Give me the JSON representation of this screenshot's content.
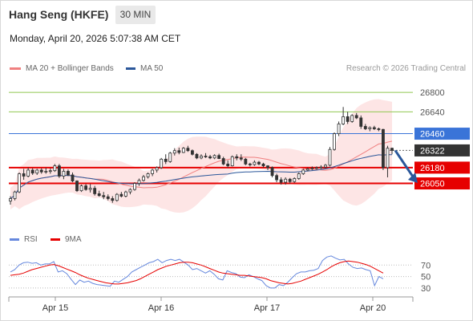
{
  "header": {
    "title": "Hang Seng (HKFE)",
    "interval": "30 MIN"
  },
  "datetime": "Monday, April 20, 2026 5:07:38 AM CET",
  "legend": {
    "ma20_label": "MA 20 + Bollinger Bands",
    "ma50_label": "MA 50",
    "rsi_label": "RSI",
    "rsi_ma_label": "9MA"
  },
  "research": "Research © 2026 Trading Central",
  "colors": {
    "ma20": "#f08080",
    "ma50": "#2b579a",
    "bands_fill": "#fde1e1",
    "support": "#e60000",
    "resistance_blue": "#3a74d8",
    "resistance_green": "#90c850",
    "last_price_bg": "#333333",
    "arrow": "#2b579a",
    "rsi": "#6688dd",
    "rsi_ma": "#e60000"
  },
  "chart_data": [
    {
      "type": "candlestick",
      "x_labels": [
        "Apr 15",
        "Apr 16",
        "Apr 17",
        "Apr 20"
      ],
      "levels": [
        {
          "value": 26800,
          "kind": "resistance",
          "color": "green"
        },
        {
          "value": 26640,
          "kind": "resistance",
          "color": "green"
        },
        {
          "value": 26460,
          "kind": "pivot",
          "color": "blue"
        },
        {
          "value": 26322,
          "kind": "last_price",
          "color": "dark"
        },
        {
          "value": 26180,
          "kind": "support",
          "color": "red"
        },
        {
          "value": 26050,
          "kind": "support",
          "color": "red"
        }
      ],
      "ylim": [
        25690,
        26920
      ],
      "ohlc": [
        [
          25905,
          25945,
          25875,
          25925
        ],
        [
          25925,
          25990,
          25910,
          25980
        ],
        [
          25980,
          26140,
          25970,
          26130
        ],
        [
          26130,
          26170,
          26080,
          26110
        ],
        [
          26110,
          26180,
          26100,
          26160
        ],
        [
          26160,
          26175,
          26120,
          26135
        ],
        [
          26135,
          26170,
          26120,
          26160
        ],
        [
          26160,
          26175,
          26130,
          26145
        ],
        [
          26145,
          26180,
          26130,
          26150
        ],
        [
          26150,
          26175,
          26130,
          26155
        ],
        [
          26155,
          26210,
          26145,
          26195
        ],
        [
          26195,
          26210,
          26095,
          26110
        ],
        [
          26110,
          26170,
          26085,
          26150
        ],
        [
          26150,
          26165,
          26110,
          26120
        ],
        [
          26120,
          26140,
          26060,
          26070
        ],
        [
          26070,
          26075,
          25980,
          25990
        ],
        [
          25990,
          26040,
          25980,
          26030
        ],
        [
          26030,
          26045,
          25990,
          26000
        ],
        [
          26000,
          26045,
          25975,
          26010
        ],
        [
          26010,
          26030,
          25950,
          25965
        ],
        [
          25965,
          25990,
          25940,
          25950
        ],
        [
          25950,
          25980,
          25920,
          25940
        ],
        [
          25940,
          25960,
          25910,
          25925
        ],
        [
          25925,
          25945,
          25890,
          25910
        ],
        [
          25910,
          25970,
          25900,
          25960
        ],
        [
          25960,
          25980,
          25935,
          25945
        ],
        [
          25945,
          25990,
          25935,
          25980
        ],
        [
          25980,
          26010,
          25960,
          26000
        ],
        [
          26000,
          26060,
          25990,
          26050
        ],
        [
          26050,
          26090,
          26030,
          26075
        ],
        [
          26075,
          26120,
          26065,
          26105
        ],
        [
          26105,
          26140,
          26090,
          26130
        ],
        [
          26130,
          26170,
          26110,
          26160
        ],
        [
          26160,
          26190,
          26140,
          26180
        ],
        [
          26180,
          26260,
          26170,
          26250
        ],
        [
          26250,
          26290,
          26210,
          26230
        ],
        [
          26230,
          26310,
          26220,
          26300
        ],
        [
          26300,
          26340,
          26280,
          26320
        ],
        [
          26320,
          26345,
          26290,
          26305
        ],
        [
          26305,
          26350,
          26300,
          26340
        ],
        [
          26340,
          26360,
          26310,
          26320
        ],
        [
          26320,
          26330,
          26280,
          26290
        ],
        [
          26290,
          26300,
          26250,
          26260
        ],
        [
          26260,
          26290,
          26250,
          26275
        ],
        [
          26275,
          26300,
          26260,
          26270
        ],
        [
          26270,
          26285,
          26250,
          26260
        ],
        [
          26260,
          26290,
          26250,
          26280
        ],
        [
          26280,
          26295,
          26250,
          26255
        ],
        [
          26255,
          26270,
          26200,
          26210
        ],
        [
          26210,
          26240,
          26180,
          26195
        ],
        [
          26195,
          26280,
          26190,
          26270
        ],
        [
          26270,
          26290,
          26240,
          26260
        ],
        [
          26260,
          26290,
          26235,
          26250
        ],
        [
          26250,
          26260,
          26200,
          26210
        ],
        [
          26210,
          26220,
          26190,
          26205
        ],
        [
          26205,
          26240,
          26195,
          26225
        ],
        [
          26225,
          26235,
          26200,
          26210
        ],
        [
          26210,
          26220,
          26180,
          26195
        ],
        [
          26195,
          26200,
          26160,
          26180
        ],
        [
          26180,
          26190,
          26100,
          26115
        ],
        [
          26115,
          26130,
          26060,
          26080
        ],
        [
          26080,
          26100,
          26040,
          26060
        ],
        [
          26060,
          26100,
          26040,
          26085
        ],
        [
          26085,
          26095,
          26050,
          26065
        ],
        [
          26065,
          26100,
          26055,
          26090
        ],
        [
          26090,
          26140,
          26080,
          26130
        ],
        [
          26130,
          26170,
          26120,
          26160
        ],
        [
          26160,
          26180,
          26150,
          26170
        ],
        [
          26170,
          26190,
          26160,
          26175
        ],
        [
          26175,
          26190,
          26165,
          26180
        ],
        [
          26180,
          26200,
          26170,
          26185
        ],
        [
          26185,
          26210,
          26175,
          26200
        ],
        [
          26200,
          26350,
          26190,
          26330
        ],
        [
          26330,
          26470,
          26320,
          26460
        ],
        [
          26460,
          26560,
          26440,
          26540
        ],
        [
          26540,
          26680,
          26530,
          26600
        ],
        [
          26600,
          26640,
          26540,
          26560
        ],
        [
          26560,
          26620,
          26550,
          26610
        ],
        [
          26610,
          26630,
          26580,
          26590
        ],
        [
          26590,
          26610,
          26500,
          26520
        ],
        [
          26520,
          26540,
          26490,
          26500
        ],
        [
          26500,
          26520,
          26480,
          26510
        ],
        [
          26510,
          26525,
          26490,
          26500
        ],
        [
          26500,
          26510,
          26480,
          26495
        ],
        [
          26495,
          26500,
          26160,
          26180
        ],
        [
          26180,
          26360,
          26100,
          26340
        ],
        [
          26340,
          26345,
          26290,
          26322
        ]
      ]
    },
    {
      "type": "line",
      "series": [
        {
          "name": "RSI",
          "values": [
            58,
            62,
            70,
            74,
            75,
            73,
            74,
            70,
            72,
            72,
            76,
            58,
            60,
            55,
            45,
            36,
            44,
            40,
            42,
            38,
            36,
            35,
            34,
            33,
            42,
            40,
            45,
            50,
            58,
            62,
            66,
            70,
            74,
            76,
            80,
            74,
            78,
            80,
            78,
            80,
            75,
            70,
            62,
            64,
            60,
            56,
            60,
            54,
            46,
            44,
            60,
            57,
            55,
            49,
            48,
            53,
            50,
            46,
            43,
            34,
            30,
            30,
            36,
            34,
            40,
            48,
            55,
            58,
            58,
            60,
            61,
            64,
            78,
            84,
            86,
            82,
            79,
            80,
            72,
            66,
            64,
            65,
            62,
            60,
            34,
            50,
            46
          ]
        },
        {
          "name": "9MA",
          "values": [
            52,
            53,
            54,
            56,
            59,
            62,
            64,
            66,
            68,
            70,
            71,
            69,
            66,
            63,
            60,
            57,
            53,
            50,
            47,
            45,
            43,
            41,
            39,
            38,
            37,
            37,
            38,
            39,
            41,
            43,
            46,
            50,
            54,
            58,
            62,
            65,
            68,
            70,
            72,
            74,
            75,
            75,
            74,
            72,
            70,
            67,
            64,
            61,
            58,
            56,
            55,
            54,
            53,
            52,
            52,
            51,
            50,
            49,
            48,
            46,
            43,
            41,
            39,
            38,
            37,
            38,
            40,
            42,
            45,
            48,
            51,
            54,
            58,
            62,
            67,
            71,
            74,
            76,
            77,
            76,
            75,
            73,
            71,
            68,
            64,
            60,
            56
          ]
        }
      ],
      "y_ticks": [
        70,
        50,
        30
      ],
      "ylim": [
        20,
        90
      ]
    }
  ]
}
